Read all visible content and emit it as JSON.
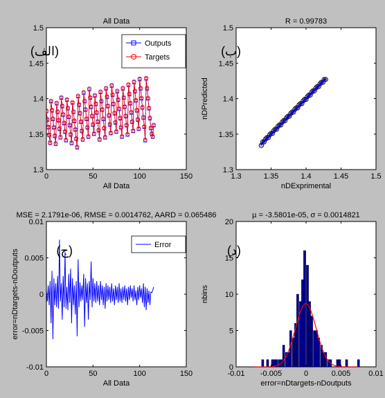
{
  "window": {
    "background": "#c0c0c0"
  },
  "colors": {
    "outputs": "#0000ff",
    "targets": "#ff0000",
    "error": "#0000ff",
    "hist_bar": "#00008b",
    "fit": "#ff0000",
    "regression": "#0000ff"
  },
  "chart_data": [
    {
      "id": "A",
      "type": "line",
      "title": "All Data",
      "xlabel": "All Data",
      "ylabel": "",
      "panel_label": "(الف)",
      "xlim": [
        0,
        150
      ],
      "ylim": [
        1.3,
        1.5
      ],
      "xticks": [
        "0",
        "50",
        "100",
        "150"
      ],
      "yticks": [
        "1.3",
        "1.35",
        "1.4",
        "1.45",
        "1.5"
      ],
      "legend": {
        "position": "top-right",
        "entries": [
          "Outputs",
          "Targets"
        ]
      },
      "grid": false,
      "series": [
        {
          "name": "Outputs",
          "marker": "square",
          "line": true,
          "x": [
            0,
            1,
            2,
            3,
            4,
            5,
            6,
            7,
            8,
            9,
            10,
            11,
            12,
            13,
            14,
            15,
            16,
            17,
            18,
            19,
            20,
            21,
            22,
            23,
            24,
            25,
            26,
            27,
            28,
            29,
            30,
            31,
            32,
            33,
            34,
            35,
            36,
            37,
            38,
            39,
            40,
            41,
            42,
            43,
            44,
            45,
            46,
            47,
            48,
            49,
            50,
            51,
            52,
            53,
            54,
            55,
            56,
            57,
            58,
            59,
            60,
            61,
            62,
            63,
            64,
            65,
            66,
            67,
            68,
            69,
            70,
            71,
            72,
            73,
            74,
            75,
            76,
            77,
            78,
            79,
            80,
            81,
            82,
            83,
            84,
            85,
            86,
            87,
            88,
            89,
            90,
            91,
            92,
            93,
            94,
            95,
            96,
            97,
            98,
            99,
            100,
            101,
            102,
            103,
            104,
            105,
            106,
            107,
            108,
            109,
            110,
            111,
            112,
            113,
            114,
            115
          ],
          "y": [
            1.382,
            1.37,
            1.36,
            1.349,
            1.338,
            1.396,
            1.383,
            1.371,
            1.359,
            1.347,
            1.336,
            1.393,
            1.381,
            1.369,
            1.357,
            1.345,
            1.401,
            1.389,
            1.377,
            1.365,
            1.353,
            1.341,
            1.398,
            1.386,
            1.374,
            1.362,
            1.349,
            1.337,
            1.394,
            1.381,
            1.368,
            1.356,
            1.343,
            1.331,
            1.403,
            1.391,
            1.379,
            1.367,
            1.354,
            1.342,
            1.408,
            1.396,
            1.384,
            1.371,
            1.359,
            1.346,
            1.413,
            1.401,
            1.388,
            1.375,
            1.363,
            1.35,
            1.404,
            1.392,
            1.38,
            1.367,
            1.355,
            1.342,
            1.409,
            1.396,
            1.384,
            1.371,
            1.358,
            1.345,
            1.414,
            1.402,
            1.389,
            1.376,
            1.363,
            1.351,
            1.418,
            1.405,
            1.392,
            1.379,
            1.366,
            1.353,
            1.41,
            1.398,
            1.385,
            1.372,
            1.359,
            1.346,
            1.414,
            1.401,
            1.388,
            1.375,
            1.362,
            1.349,
            1.419,
            1.406,
            1.393,
            1.38,
            1.367,
            1.354,
            1.423,
            1.41,
            1.397,
            1.383,
            1.37,
            1.357,
            1.427,
            1.414,
            1.4,
            1.387,
            1.373,
            1.36,
            1.341,
            1.428,
            1.414,
            1.4,
            1.386,
            1.372,
            1.358,
            1.35,
            1.346,
            1.362
          ]
        },
        {
          "name": "Targets",
          "marker": "circle",
          "line": true,
          "x": [
            0,
            1,
            2,
            3,
            4,
            5,
            6,
            7,
            8,
            9,
            10,
            11,
            12,
            13,
            14,
            15,
            16,
            17,
            18,
            19,
            20,
            21,
            22,
            23,
            24,
            25,
            26,
            27,
            28,
            29,
            30,
            31,
            32,
            33,
            34,
            35,
            36,
            37,
            38,
            39,
            40,
            41,
            42,
            43,
            44,
            45,
            46,
            47,
            48,
            49,
            50,
            51,
            52,
            53,
            54,
            55,
            56,
            57,
            58,
            59,
            60,
            61,
            62,
            63,
            64,
            65,
            66,
            67,
            68,
            69,
            70,
            71,
            72,
            73,
            74,
            75,
            76,
            77,
            78,
            79,
            80,
            81,
            82,
            83,
            84,
            85,
            86,
            87,
            88,
            89,
            90,
            91,
            92,
            93,
            94,
            95,
            96,
            97,
            98,
            99,
            100,
            101,
            102,
            103,
            104,
            105,
            106,
            107,
            108,
            109,
            110,
            111,
            112,
            113,
            114,
            115
          ],
          "y": [
            1.383,
            1.371,
            1.359,
            1.348,
            1.337,
            1.397,
            1.384,
            1.372,
            1.36,
            1.348,
            1.337,
            1.394,
            1.382,
            1.37,
            1.358,
            1.346,
            1.402,
            1.39,
            1.378,
            1.366,
            1.354,
            1.342,
            1.399,
            1.387,
            1.375,
            1.363,
            1.35,
            1.338,
            1.395,
            1.382,
            1.369,
            1.357,
            1.344,
            1.332,
            1.404,
            1.392,
            1.38,
            1.368,
            1.355,
            1.343,
            1.409,
            1.397,
            1.385,
            1.372,
            1.36,
            1.347,
            1.414,
            1.402,
            1.389,
            1.376,
            1.364,
            1.351,
            1.405,
            1.393,
            1.381,
            1.368,
            1.356,
            1.343,
            1.41,
            1.397,
            1.385,
            1.372,
            1.359,
            1.346,
            1.415,
            1.403,
            1.39,
            1.377,
            1.364,
            1.352,
            1.419,
            1.406,
            1.393,
            1.38,
            1.367,
            1.354,
            1.411,
            1.399,
            1.386,
            1.373,
            1.36,
            1.347,
            1.415,
            1.402,
            1.389,
            1.376,
            1.363,
            1.35,
            1.42,
            1.407,
            1.394,
            1.381,
            1.368,
            1.355,
            1.424,
            1.411,
            1.398,
            1.384,
            1.371,
            1.358,
            1.428,
            1.415,
            1.401,
            1.388,
            1.374,
            1.361,
            1.342,
            1.429,
            1.415,
            1.401,
            1.387,
            1.373,
            1.359,
            1.351,
            1.347,
            1.363
          ]
        }
      ]
    },
    {
      "id": "B",
      "type": "scatter",
      "title": "R = 0.99783",
      "xlabel": "nDExprimental",
      "ylabel": "nDPredicted",
      "panel_label": "(ب)",
      "xlim": [
        1.3,
        1.5
      ],
      "ylim": [
        1.3,
        1.5
      ],
      "xticks": [
        "1.3",
        "1.35",
        "1.4",
        "1.45",
        "1.5"
      ],
      "yticks": [
        "1.3",
        "1.35",
        "1.4",
        "1.45",
        "1.5"
      ],
      "grid": false,
      "fit_line": {
        "x": [
          1.335,
          1.428
        ],
        "y": [
          1.335,
          1.428
        ]
      },
      "series": [
        {
          "marker": "circle",
          "x": [
            1.336,
            1.338,
            1.34,
            1.342,
            1.344,
            1.346,
            1.348,
            1.35,
            1.352,
            1.354,
            1.356,
            1.358,
            1.36,
            1.362,
            1.364,
            1.366,
            1.368,
            1.37,
            1.372,
            1.374,
            1.376,
            1.378,
            1.38,
            1.382,
            1.384,
            1.386,
            1.388,
            1.39,
            1.392,
            1.394,
            1.396,
            1.398,
            1.4,
            1.402,
            1.404,
            1.406,
            1.408,
            1.41,
            1.412,
            1.414,
            1.416,
            1.418,
            1.42,
            1.422,
            1.424,
            1.426,
            1.428
          ],
          "y": [
            1.334,
            1.339,
            1.339,
            1.343,
            1.345,
            1.345,
            1.349,
            1.351,
            1.351,
            1.355,
            1.357,
            1.357,
            1.361,
            1.363,
            1.363,
            1.367,
            1.369,
            1.369,
            1.373,
            1.375,
            1.375,
            1.379,
            1.381,
            1.381,
            1.385,
            1.387,
            1.387,
            1.391,
            1.393,
            1.393,
            1.397,
            1.399,
            1.399,
            1.403,
            1.405,
            1.405,
            1.409,
            1.411,
            1.411,
            1.415,
            1.417,
            1.417,
            1.421,
            1.423,
            1.423,
            1.427,
            1.427
          ]
        }
      ]
    },
    {
      "id": "C",
      "type": "line",
      "title": "MSE = 2.1791e-06, RMSE = 0.0014762,  AARD = 0.065486",
      "xlabel": "All Data",
      "ylabel": "error=nDtargets-nDoutputs",
      "panel_label": "(ج)",
      "xlim": [
        0,
        150
      ],
      "ylim": [
        -0.01,
        0.01
      ],
      "xticks": [
        "0",
        "50",
        "100",
        "150"
      ],
      "yticks": [
        "-0.01",
        "-0.005",
        "0",
        "0.005",
        "0.01"
      ],
      "legend": {
        "position": "top-right",
        "entries": [
          "Error"
        ]
      },
      "grid": false,
      "series": [
        {
          "name": "Error",
          "x": [
            0,
            1,
            2,
            3,
            4,
            5,
            6,
            7,
            8,
            9,
            10,
            11,
            12,
            13,
            14,
            15,
            16,
            17,
            18,
            19,
            20,
            21,
            22,
            23,
            24,
            25,
            26,
            27,
            28,
            29,
            30,
            31,
            32,
            33,
            34,
            35,
            36,
            37,
            38,
            39,
            40,
            41,
            42,
            43,
            44,
            45,
            46,
            47,
            48,
            49,
            50,
            51,
            52,
            53,
            54,
            55,
            56,
            57,
            58,
            59,
            60,
            61,
            62,
            63,
            64,
            65,
            66,
            67,
            68,
            69,
            70,
            71,
            72,
            73,
            74,
            75,
            76,
            77,
            78,
            79,
            80,
            81,
            82,
            83,
            84,
            85,
            86,
            87,
            88,
            89,
            90,
            91,
            92,
            93,
            94,
            95,
            96,
            97,
            98,
            99,
            100,
            101,
            102,
            103,
            104,
            105,
            106,
            107,
            108,
            109,
            110,
            111,
            112,
            113,
            114,
            115
          ],
          "y": [
            0.0005,
            -0.001,
            0.0012,
            -0.0015,
            0.0018,
            -0.004,
            0.0032,
            -0.0062,
            0.0022,
            -0.0015,
            0.0015,
            -0.0018,
            0.0025,
            -0.002,
            0.0075,
            -0.001,
            0.0015,
            -0.0035,
            0.0025,
            -0.0018,
            0.0058,
            -0.002,
            0.001,
            -0.0022,
            0.0028,
            -0.0012,
            0.0035,
            -0.004,
            0.0022,
            -0.0015,
            0.0012,
            -0.0028,
            0.0018,
            -0.0058,
            0.0048,
            -0.0018,
            0.0016,
            -0.001,
            0.0012,
            -0.0008,
            0.0028,
            -0.0045,
            0.0022,
            -0.0012,
            0.0015,
            -0.0035,
            0.0018,
            -0.0008,
            0.0045,
            -0.0018,
            0.0022,
            -0.001,
            0.0015,
            -0.0012,
            0.0018,
            -0.001,
            0.0012,
            -0.0015,
            0.0018,
            -0.0008,
            0.0012,
            -0.0015,
            0.001,
            -0.002,
            0.0015,
            -0.001,
            0.0012,
            -0.0008,
            0.001,
            -0.0012,
            0.0015,
            -0.001,
            0.0008,
            -0.0015,
            0.0012,
            -0.0008,
            0.001,
            -0.0012,
            0.0015,
            -0.001,
            0.0008,
            -0.0012,
            0.001,
            -0.0008,
            0.0012,
            -0.001,
            0.0008,
            -0.0015,
            0.001,
            -0.0008,
            0.0012,
            -0.0005,
            0.0008,
            -0.001,
            0.0012,
            -0.0008,
            0.0005,
            -0.0015,
            0.001,
            -0.0008,
            0.0012,
            -0.0005,
            0.0008,
            -0.0012,
            0.0015,
            -0.0018,
            0.001,
            -0.0022,
            0.0008,
            -0.0012,
            0.0005,
            -0.0015,
            0.0003,
            0.0002,
            0.0005,
            0.001
          ]
        }
      ]
    },
    {
      "id": "D",
      "type": "bar",
      "title": "µ = -3.5801e-05, σ = 0.0014821",
      "xlabel": "error=nDtargets-nDoutputs",
      "ylabel": "nbins",
      "panel_label": "(د)",
      "xlim": [
        -0.01,
        0.01
      ],
      "ylim": [
        0,
        20
      ],
      "xticks": [
        "-0.01",
        "-0.005",
        "0",
        "0.005",
        "0.01"
      ],
      "yticks": [
        "0",
        "5",
        "10",
        "15",
        "20"
      ],
      "grid": false,
      "bin_width": 0.00033,
      "series": [
        {
          "name": "histogram",
          "x": [
            -0.0062,
            -0.0055,
            -0.0048,
            -0.0045,
            -0.0042,
            -0.0038,
            -0.0035,
            -0.0032,
            -0.0028,
            -0.0025,
            -0.0022,
            -0.0018,
            -0.0015,
            -0.0012,
            -0.0008,
            -0.0005,
            -0.0002,
            0.0002,
            0.0005,
            0.0008,
            0.0012,
            0.0015,
            0.0018,
            0.0022,
            0.0025,
            0.0028,
            0.0032,
            0.0035,
            0.0045,
            0.0048,
            0.0058,
            0.0075
          ],
          "values": [
            1,
            1,
            1,
            1,
            1,
            1,
            1,
            3,
            2,
            2,
            5,
            4,
            6,
            10,
            9,
            12,
            16,
            14,
            9,
            7,
            5,
            5,
            4,
            3,
            2,
            2,
            1,
            1,
            1,
            1,
            1,
            1
          ]
        }
      ],
      "fit_curve": {
        "name": "normal-fit",
        "mu": -3.58e-05,
        "sigma": 0.0014821,
        "peak": 8.7
      }
    }
  ]
}
